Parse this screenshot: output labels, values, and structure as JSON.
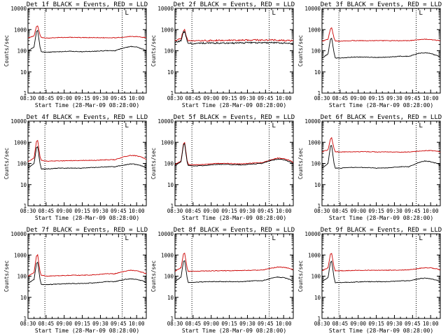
{
  "colors": {
    "events": "#000000",
    "lld": "#cc0000",
    "axis": "#000000",
    "background": "#ffffff"
  },
  "shared": {
    "ylabel": "Counts/sec",
    "xlabel": "Start Time (28-Mar-09 08:28:00)",
    "xtick_labels": [
      "08:30",
      "08:45",
      "09:00",
      "09:15",
      "09:30",
      "09:45",
      "10:00"
    ],
    "ytick_labels": [
      "1",
      "10",
      "100",
      "1000",
      "10000"
    ],
    "corner_mark": "L"
  },
  "chart_data": [
    {
      "type": "line",
      "title": "Det 1f BLACK = Events, RED = LLD",
      "xlabel": "Start Time (28-Mar-09 08:28:00)",
      "ylabel": "Counts/sec",
      "yscale": "log",
      "ylim": [
        1,
        10000
      ],
      "xlim": [
        "08:30",
        "10:08"
      ],
      "vlines": [
        "08:44",
        "09:48"
      ],
      "x": [
        "08:30",
        "08:35",
        "08:37",
        "08:38",
        "08:40",
        "08:41",
        "08:45",
        "08:55",
        "09:05",
        "09:15",
        "09:25",
        "09:35",
        "09:42",
        "09:50",
        "09:55",
        "10:00",
        "10:05",
        "10:08"
      ],
      "series": [
        {
          "name": "Events",
          "values": [
            100,
            150,
            800,
            900,
            150,
            90,
            85,
            90,
            95,
            90,
            95,
            100,
            100,
            140,
            160,
            150,
            120,
            100
          ]
        },
        {
          "name": "LLD",
          "values": [
            400,
            500,
            1400,
            1500,
            550,
            420,
            400,
            420,
            430,
            420,
            420,
            410,
            410,
            440,
            480,
            470,
            430,
            420
          ]
        }
      ]
    },
    {
      "type": "line",
      "title": "Det 2f BLACK = Events, RED = LLD",
      "xlabel": "Start Time (28-Mar-09 08:28:00)",
      "ylabel": "Counts/sec",
      "yscale": "log",
      "ylim": [
        1,
        10000
      ],
      "xlim": [
        "08:30",
        "10:08"
      ],
      "vlines": [
        "08:44",
        "09:48"
      ],
      "x": [
        "08:30",
        "08:35",
        "08:37",
        "08:38",
        "08:40",
        "08:41",
        "08:45",
        "08:55",
        "09:05",
        "09:15",
        "09:25",
        "09:35",
        "09:42",
        "09:50",
        "09:55",
        "10:00",
        "10:05",
        "10:08"
      ],
      "series": [
        {
          "name": "Events",
          "values": [
            250,
            300,
            750,
            800,
            300,
            220,
            220,
            230,
            230,
            230,
            235,
            240,
            240,
            240,
            235,
            230,
            225,
            220
          ]
        },
        {
          "name": "LLD",
          "values": [
            300,
            380,
            900,
            950,
            380,
            290,
            290,
            300,
            310,
            310,
            315,
            320,
            320,
            320,
            315,
            310,
            305,
            300
          ]
        }
      ]
    },
    {
      "type": "line",
      "title": "Det 3f BLACK = Events, RED = LLD",
      "xlabel": "Start Time (28-Mar-09 08:28:00)",
      "ylabel": "Counts/sec",
      "yscale": "log",
      "ylim": [
        1,
        10000
      ],
      "xlim": [
        "08:30",
        "10:08"
      ],
      "vlines": [
        "08:44",
        "09:48"
      ],
      "x": [
        "08:30",
        "08:35",
        "08:37",
        "08:38",
        "08:40",
        "08:41",
        "08:45",
        "08:55",
        "09:05",
        "09:15",
        "09:25",
        "09:35",
        "09:42",
        "09:50",
        "09:55",
        "10:00",
        "10:05",
        "10:08"
      ],
      "series": [
        {
          "name": "Events",
          "values": [
            45,
            70,
            350,
            400,
            80,
            45,
            45,
            50,
            50,
            48,
            50,
            55,
            55,
            75,
            80,
            75,
            60,
            50
          ]
        },
        {
          "name": "LLD",
          "values": [
            280,
            350,
            1100,
            1200,
            400,
            290,
            280,
            300,
            300,
            300,
            300,
            300,
            300,
            330,
            350,
            340,
            310,
            300
          ]
        }
      ]
    },
    {
      "type": "line",
      "title": "Det 4f BLACK = Events, RED = LLD",
      "xlabel": "Start Time (28-Mar-09 08:28:00)",
      "ylabel": "Counts/sec",
      "yscale": "log",
      "ylim": [
        1,
        10000
      ],
      "xlim": [
        "08:30",
        "10:08"
      ],
      "vlines": [
        "08:44",
        "09:48"
      ],
      "x": [
        "08:30",
        "08:35",
        "08:37",
        "08:38",
        "08:40",
        "08:41",
        "08:45",
        "08:55",
        "09:05",
        "09:15",
        "09:25",
        "09:35",
        "09:42",
        "09:50",
        "09:55",
        "10:00",
        "10:05",
        "10:08"
      ],
      "series": [
        {
          "name": "Events",
          "values": [
            60,
            100,
            550,
            600,
            100,
            55,
            55,
            60,
            60,
            60,
            65,
            70,
            70,
            85,
            95,
            90,
            75,
            60
          ]
        },
        {
          "name": "LLD",
          "values": [
            120,
            180,
            1100,
            1250,
            200,
            140,
            130,
            130,
            135,
            140,
            140,
            150,
            150,
            210,
            240,
            230,
            190,
            160
          ]
        }
      ]
    },
    {
      "type": "line",
      "title": "Det 5f BLACK = Events, RED = LLD",
      "xlabel": "Start Time (28-Mar-09 08:28:00)",
      "ylabel": "Counts/sec",
      "yscale": "log",
      "ylim": [
        1,
        10000
      ],
      "xlim": [
        "08:30",
        "10:08"
      ],
      "vlines": [
        "08:44",
        "09:48"
      ],
      "x": [
        "08:30",
        "08:35",
        "08:37",
        "08:38",
        "08:40",
        "08:41",
        "08:45",
        "08:55",
        "09:05",
        "09:15",
        "09:25",
        "09:35",
        "09:42",
        "09:50",
        "09:55",
        "10:00",
        "10:05",
        "10:08"
      ],
      "series": [
        {
          "name": "Events",
          "values": [
            80,
            120,
            750,
            850,
            120,
            80,
            75,
            80,
            90,
            90,
            85,
            95,
            100,
            140,
            160,
            150,
            120,
            100
          ]
        },
        {
          "name": "LLD",
          "values": [
            90,
            130,
            850,
            1000,
            140,
            90,
            85,
            90,
            100,
            100,
            95,
            105,
            110,
            150,
            180,
            170,
            140,
            110
          ]
        }
      ]
    },
    {
      "type": "line",
      "title": "Det 6f BLACK = Events, RED = LLD",
      "xlabel": "Start Time (28-Mar-09 08:28:00)",
      "ylabel": "Counts/sec",
      "yscale": "log",
      "ylim": [
        1,
        10000
      ],
      "xlim": [
        "08:30",
        "10:08"
      ],
      "vlines": [
        "08:44",
        "09:48"
      ],
      "x": [
        "08:30",
        "08:35",
        "08:37",
        "08:38",
        "08:40",
        "08:41",
        "08:45",
        "08:55",
        "09:05",
        "09:15",
        "09:25",
        "09:35",
        "09:42",
        "09:50",
        "09:55",
        "10:00",
        "10:05",
        "10:08"
      ],
      "series": [
        {
          "name": "Events",
          "values": [
            60,
            100,
            650,
            700,
            100,
            60,
            60,
            65,
            65,
            60,
            62,
            70,
            70,
            110,
            130,
            120,
            100,
            85
          ]
        },
        {
          "name": "LLD",
          "values": [
            350,
            450,
            1400,
            1600,
            500,
            360,
            350,
            350,
            360,
            350,
            350,
            340,
            350,
            380,
            400,
            410,
            380,
            350
          ]
        }
      ]
    },
    {
      "type": "line",
      "title": "Det 7f BLACK = Events, RED = LLD",
      "xlabel": "Start Time (28-Mar-09 08:28:00)",
      "ylabel": "Counts/sec",
      "yscale": "log",
      "ylim": [
        1,
        10000
      ],
      "xlim": [
        "08:30",
        "10:08"
      ],
      "vlines": [
        "08:44",
        "09:48"
      ],
      "x": [
        "08:30",
        "08:35",
        "08:37",
        "08:38",
        "08:40",
        "08:41",
        "08:45",
        "08:55",
        "09:05",
        "09:15",
        "09:25",
        "09:35",
        "09:42",
        "09:50",
        "09:55",
        "10:00",
        "10:05",
        "10:08"
      ],
      "series": [
        {
          "name": "Events",
          "values": [
            45,
            70,
            400,
            450,
            70,
            40,
            40,
            42,
            45,
            45,
            48,
            55,
            55,
            70,
            75,
            70,
            60,
            50
          ]
        },
        {
          "name": "LLD",
          "values": [
            100,
            150,
            900,
            1000,
            160,
            110,
            100,
            105,
            110,
            110,
            115,
            130,
            130,
            170,
            190,
            180,
            150,
            130
          ]
        }
      ]
    },
    {
      "type": "line",
      "title": "Det 8f BLACK = Events, RED = LLD",
      "xlabel": "Start Time (28-Mar-09 08:28:00)",
      "ylabel": "Counts/sec",
      "yscale": "log",
      "ylim": [
        1,
        10000
      ],
      "xlim": [
        "08:30",
        "10:08"
      ],
      "vlines": [
        "08:44",
        "09:48"
      ],
      "x": [
        "08:30",
        "08:35",
        "08:37",
        "08:38",
        "08:40",
        "08:41",
        "08:45",
        "08:55",
        "09:05",
        "09:15",
        "09:25",
        "09:35",
        "09:42",
        "09:50",
        "09:55",
        "10:00",
        "10:05",
        "10:08"
      ],
      "series": [
        {
          "name": "Events",
          "values": [
            55,
            90,
            500,
            550,
            90,
            50,
            50,
            55,
            55,
            55,
            55,
            60,
            60,
            80,
            90,
            85,
            70,
            55
          ]
        },
        {
          "name": "LLD",
          "values": [
            170,
            250,
            1100,
            1200,
            260,
            170,
            170,
            175,
            180,
            180,
            185,
            190,
            195,
            240,
            270,
            260,
            230,
            200
          ]
        }
      ]
    },
    {
      "type": "line",
      "title": "Det 9f BLACK = Events, RED = LLD",
      "xlabel": "Start Time (28-Mar-09 08:28:00)",
      "ylabel": "Counts/sec",
      "yscale": "log",
      "ylim": [
        1,
        10000
      ],
      "xlim": [
        "08:30",
        "10:08"
      ],
      "vlines": [
        "08:44",
        "09:48"
      ],
      "x": [
        "08:30",
        "08:35",
        "08:37",
        "08:38",
        "08:40",
        "08:41",
        "08:45",
        "08:55",
        "09:05",
        "09:15",
        "09:25",
        "09:35",
        "09:42",
        "09:50",
        "09:55",
        "10:00",
        "10:05",
        "10:08"
      ],
      "series": [
        {
          "name": "Events",
          "values": [
            55,
            85,
            450,
            500,
            85,
            50,
            50,
            52,
            55,
            55,
            55,
            60,
            60,
            75,
            80,
            75,
            65,
            55
          ]
        },
        {
          "name": "LLD",
          "values": [
            180,
            250,
            1100,
            1200,
            260,
            180,
            180,
            185,
            190,
            190,
            190,
            195,
            200,
            230,
            250,
            245,
            220,
            200
          ]
        }
      ]
    }
  ]
}
